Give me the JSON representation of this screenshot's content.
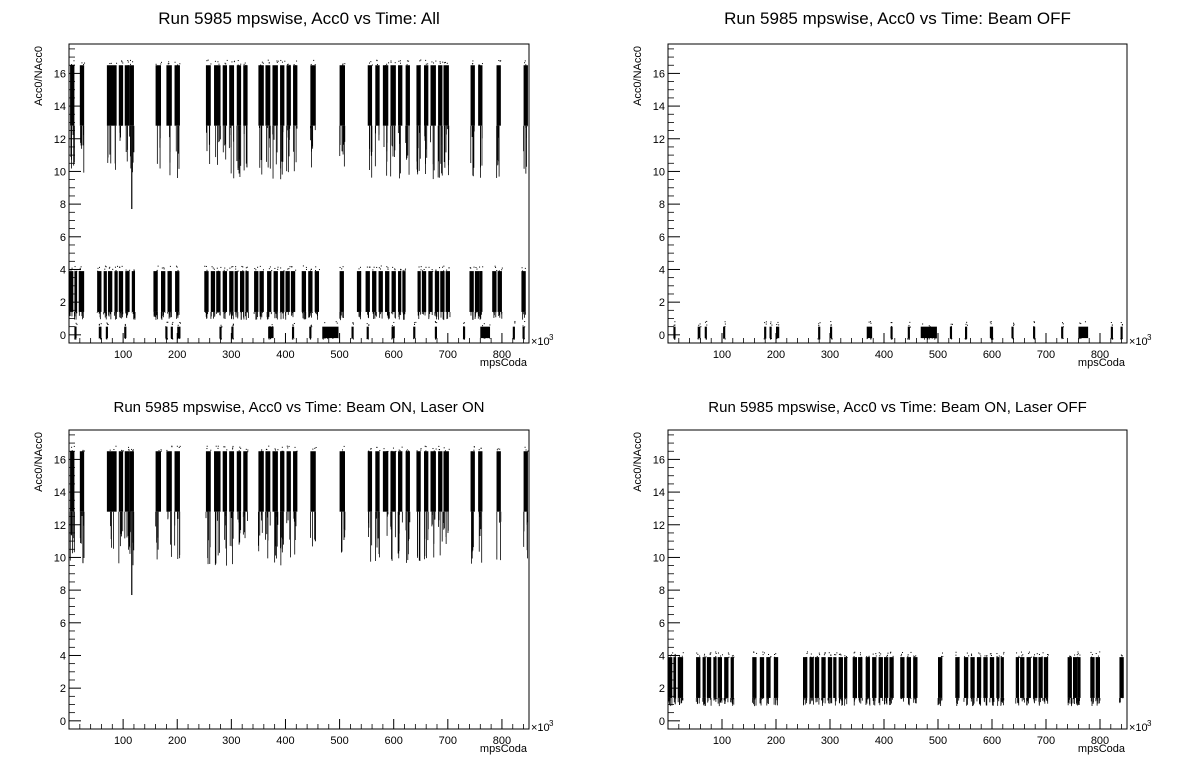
{
  "chart_data": [
    {
      "type": "scatter",
      "title": "Run 5985 mpswise, Acc0 vs Time: All",
      "xlabel": "mpsCoda",
      "ylabel": "Acc0/NAcc0",
      "x_exponent_label": "×10",
      "x_exponent_power": "3",
      "xlim": [
        0,
        850
      ],
      "ylim": [
        -0.5,
        17.8
      ],
      "x_major_ticks": [
        100,
        200,
        300,
        400,
        500,
        600,
        700,
        800
      ],
      "x_tick_labels": [
        "100",
        "200",
        "300",
        "400",
        "500",
        "600",
        "700",
        "800"
      ],
      "y_major_ticks": [
        0,
        2,
        4,
        6,
        8,
        10,
        12,
        14,
        16
      ],
      "y_tick_labels": [
        "0",
        "2",
        "4",
        "6",
        "8",
        "10",
        "12",
        "14",
        "16"
      ],
      "bands": [
        {
          "segments": [
            [
              2,
              10
            ],
            [
              20,
              28
            ],
            [
              70,
              88
            ],
            [
              92,
              100
            ],
            [
              103,
              112
            ],
            [
              112,
              120
            ],
            [
              160,
              170
            ],
            [
              180,
              190
            ],
            [
              195,
              205
            ],
            [
              253,
              262
            ],
            [
              268,
              280
            ],
            [
              284,
              292
            ],
            [
              296,
              305
            ],
            [
              310,
              318
            ],
            [
              322,
              330
            ],
            [
              350,
              360
            ],
            [
              363,
              372
            ],
            [
              376,
              386
            ],
            [
              390,
              398
            ],
            [
              402,
              410
            ],
            [
              414,
              422
            ],
            [
              446,
              456
            ],
            [
              500,
              510
            ],
            [
              552,
              560
            ],
            [
              566,
              574
            ],
            [
              580,
              590
            ],
            [
              594,
              604
            ],
            [
              608,
              616
            ],
            [
              622,
              630
            ],
            [
              642,
              650
            ],
            [
              656,
              664
            ],
            [
              668,
              678
            ],
            [
              682,
              690
            ],
            [
              692,
              702
            ],
            [
              742,
              750
            ],
            [
              756,
              764
            ],
            [
              790,
              798
            ],
            [
              840,
              848
            ]
          ],
          "min": 12.8,
          "max": 16.5,
          "tail_min": 9.5,
          "spike_min": 7.7
        },
        {
          "segments": [
            [
              0,
              8
            ],
            [
              10,
              15
            ],
            [
              18,
              28
            ],
            [
              52,
              60
            ],
            [
              64,
              70
            ],
            [
              72,
              80
            ],
            [
              84,
              90
            ],
            [
              92,
              100
            ],
            [
              104,
              112
            ],
            [
              116,
              122
            ],
            [
              156,
              164
            ],
            [
              170,
              178
            ],
            [
              182,
              190
            ],
            [
              196,
              204
            ],
            [
              250,
              258
            ],
            [
              262,
              270
            ],
            [
              272,
              280
            ],
            [
              284,
              292
            ],
            [
              296,
              304
            ],
            [
              306,
              312
            ],
            [
              316,
              324
            ],
            [
              326,
              332
            ],
            [
              342,
              350
            ],
            [
              352,
              360
            ],
            [
              366,
              374
            ],
            [
              378,
              386
            ],
            [
              390,
              398
            ],
            [
              400,
              408
            ],
            [
              410,
              418
            ],
            [
              430,
              438
            ],
            [
              442,
              450
            ],
            [
              454,
              462
            ],
            [
              500,
              508
            ],
            [
              532,
              540
            ],
            [
              548,
              556
            ],
            [
              560,
              568
            ],
            [
              572,
              580
            ],
            [
              584,
              592
            ],
            [
              596,
              604
            ],
            [
              608,
              614
            ],
            [
              616,
              622
            ],
            [
              644,
              650
            ],
            [
              652,
              660
            ],
            [
              664,
              672
            ],
            [
              676,
              684
            ],
            [
              686,
              694
            ],
            [
              696,
              704
            ],
            [
              740,
              748
            ],
            [
              750,
              758
            ],
            [
              758,
              764
            ],
            [
              782,
              790
            ],
            [
              792,
              800
            ],
            [
              836,
              844
            ]
          ],
          "min": 1.4,
          "max": 3.9,
          "tail_min": 0.9,
          "spike_min": 0.9
        },
        {
          "segments": [
            [
              10,
              14
            ],
            [
              55,
              60
            ],
            [
              68,
              72
            ],
            [
              102,
              106
            ],
            [
              178,
              182
            ],
            [
              188,
              192
            ],
            [
              200,
              206
            ],
            [
              278,
              282
            ],
            [
              300,
              304
            ],
            [
              368,
              378
            ],
            [
              412,
              416
            ],
            [
              444,
              448
            ],
            [
              468,
              498
            ],
            [
              522,
              526
            ],
            [
              550,
              554
            ],
            [
              596,
              602
            ],
            [
              636,
              640
            ],
            [
              676,
              680
            ],
            [
              728,
              732
            ],
            [
              760,
              778
            ],
            [
              820,
              824
            ],
            [
              838,
              842
            ]
          ],
          "min": -0.2,
          "max": 0.5,
          "tail_min": -0.3,
          "spike_min": -0.3
        }
      ]
    },
    {
      "type": "scatter",
      "title": "Run 5985 mpswise, Acc0 vs Time: Beam OFF",
      "xlabel": "mpsCoda",
      "ylabel": "Acc0/NAcc0",
      "x_exponent_label": "×10",
      "x_exponent_power": "3",
      "xlim": [
        0,
        850
      ],
      "ylim": [
        -0.5,
        17.8
      ],
      "x_major_ticks": [
        100,
        200,
        300,
        400,
        500,
        600,
        700,
        800
      ],
      "x_tick_labels": [
        "100",
        "200",
        "300",
        "400",
        "500",
        "600",
        "700",
        "800"
      ],
      "y_major_ticks": [
        0,
        2,
        4,
        6,
        8,
        10,
        12,
        14,
        16
      ],
      "y_tick_labels": [
        "0",
        "2",
        "4",
        "6",
        "8",
        "10",
        "12",
        "14",
        "16"
      ],
      "bands": [
        {
          "segments": [
            [
              10,
              14
            ],
            [
              55,
              60
            ],
            [
              68,
              72
            ],
            [
              102,
              106
            ],
            [
              178,
              182
            ],
            [
              188,
              192
            ],
            [
              200,
              206
            ],
            [
              278,
              282
            ],
            [
              300,
              304
            ],
            [
              368,
              378
            ],
            [
              412,
              416
            ],
            [
              444,
              448
            ],
            [
              468,
              498
            ],
            [
              522,
              526
            ],
            [
              550,
              554
            ],
            [
              596,
              602
            ],
            [
              636,
              640
            ],
            [
              676,
              680
            ],
            [
              728,
              732
            ],
            [
              760,
              778
            ],
            [
              820,
              824
            ],
            [
              838,
              842
            ]
          ],
          "min": -0.2,
          "max": 0.5,
          "tail_min": -0.3,
          "spike_min": -0.3
        }
      ]
    },
    {
      "type": "scatter",
      "title": "Run 5985 mpswise, Acc0 vs Time: Beam ON, Laser ON",
      "xlabel": "mpsCoda",
      "ylabel": "Acc0/NAcc0",
      "x_exponent_label": "×10",
      "x_exponent_power": "3",
      "xlim": [
        0,
        850
      ],
      "ylim": [
        -0.5,
        17.8
      ],
      "x_major_ticks": [
        100,
        200,
        300,
        400,
        500,
        600,
        700,
        800
      ],
      "x_tick_labels": [
        "100",
        "200",
        "300",
        "400",
        "500",
        "600",
        "700",
        "800"
      ],
      "y_major_ticks": [
        0,
        2,
        4,
        6,
        8,
        10,
        12,
        14,
        16
      ],
      "y_tick_labels": [
        "0",
        "2",
        "4",
        "6",
        "8",
        "10",
        "12",
        "14",
        "16"
      ],
      "bands": [
        {
          "segments": [
            [
              2,
              10
            ],
            [
              20,
              28
            ],
            [
              70,
              88
            ],
            [
              92,
              100
            ],
            [
              103,
              112
            ],
            [
              112,
              120
            ],
            [
              160,
              170
            ],
            [
              180,
              190
            ],
            [
              195,
              205
            ],
            [
              253,
              262
            ],
            [
              268,
              280
            ],
            [
              284,
              292
            ],
            [
              296,
              305
            ],
            [
              310,
              318
            ],
            [
              322,
              330
            ],
            [
              350,
              360
            ],
            [
              363,
              372
            ],
            [
              376,
              386
            ],
            [
              390,
              398
            ],
            [
              402,
              410
            ],
            [
              414,
              422
            ],
            [
              446,
              456
            ],
            [
              500,
              510
            ],
            [
              552,
              560
            ],
            [
              566,
              574
            ],
            [
              580,
              590
            ],
            [
              594,
              604
            ],
            [
              608,
              616
            ],
            [
              622,
              630
            ],
            [
              642,
              650
            ],
            [
              656,
              664
            ],
            [
              668,
              678
            ],
            [
              682,
              690
            ],
            [
              692,
              702
            ],
            [
              742,
              750
            ],
            [
              756,
              764
            ],
            [
              790,
              798
            ],
            [
              840,
              848
            ]
          ],
          "min": 12.8,
          "max": 16.5,
          "tail_min": 9.5,
          "spike_min": 7.7
        }
      ]
    },
    {
      "type": "scatter",
      "title": "Run 5985 mpswise, Acc0 vs Time: Beam ON, Laser OFF",
      "xlabel": "mpsCoda",
      "ylabel": "Acc0/NAcc0",
      "x_exponent_label": "×10",
      "x_exponent_power": "3",
      "xlim": [
        0,
        850
      ],
      "ylim": [
        -0.5,
        17.8
      ],
      "x_major_ticks": [
        100,
        200,
        300,
        400,
        500,
        600,
        700,
        800
      ],
      "x_tick_labels": [
        "100",
        "200",
        "300",
        "400",
        "500",
        "600",
        "700",
        "800"
      ],
      "y_major_ticks": [
        0,
        2,
        4,
        6,
        8,
        10,
        12,
        14,
        16
      ],
      "y_tick_labels": [
        "0",
        "2",
        "4",
        "6",
        "8",
        "10",
        "12",
        "14",
        "16"
      ],
      "bands": [
        {
          "segments": [
            [
              0,
              8
            ],
            [
              10,
              15
            ],
            [
              18,
              28
            ],
            [
              52,
              60
            ],
            [
              64,
              70
            ],
            [
              72,
              80
            ],
            [
              84,
              90
            ],
            [
              92,
              100
            ],
            [
              104,
              112
            ],
            [
              116,
              122
            ],
            [
              156,
              164
            ],
            [
              170,
              178
            ],
            [
              182,
              190
            ],
            [
              196,
              204
            ],
            [
              250,
              258
            ],
            [
              262,
              270
            ],
            [
              272,
              280
            ],
            [
              284,
              292
            ],
            [
              296,
              304
            ],
            [
              306,
              312
            ],
            [
              316,
              324
            ],
            [
              326,
              332
            ],
            [
              342,
              350
            ],
            [
              352,
              360
            ],
            [
              366,
              374
            ],
            [
              378,
              386
            ],
            [
              390,
              398
            ],
            [
              400,
              408
            ],
            [
              410,
              418
            ],
            [
              430,
              438
            ],
            [
              442,
              450
            ],
            [
              454,
              462
            ],
            [
              500,
              508
            ],
            [
              532,
              540
            ],
            [
              548,
              556
            ],
            [
              560,
              568
            ],
            [
              572,
              580
            ],
            [
              584,
              592
            ],
            [
              596,
              604
            ],
            [
              608,
              614
            ],
            [
              616,
              622
            ],
            [
              644,
              650
            ],
            [
              652,
              660
            ],
            [
              664,
              672
            ],
            [
              676,
              684
            ],
            [
              686,
              694
            ],
            [
              696,
              704
            ],
            [
              740,
              748
            ],
            [
              750,
              758
            ],
            [
              758,
              764
            ],
            [
              782,
              790
            ],
            [
              792,
              800
            ],
            [
              836,
              844
            ]
          ],
          "min": 1.4,
          "max": 3.9,
          "tail_min": 0.9,
          "spike_min": 0.9
        }
      ]
    }
  ]
}
